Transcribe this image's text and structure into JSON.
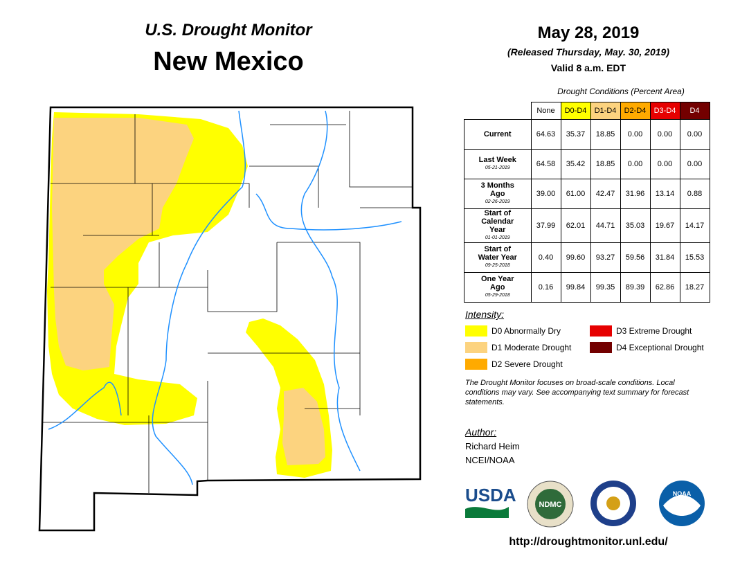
{
  "header": {
    "subtitle": "U.S. Drought Monitor",
    "title": "New Mexico",
    "date": "May 28, 2019",
    "released": "(Released Thursday, May. 30, 2019)",
    "valid": "Valid 8 a.m. EDT"
  },
  "table": {
    "caption": "Drought Conditions (Percent Area)",
    "columns": [
      {
        "label": "None",
        "color": "#ffffff"
      },
      {
        "label": "D0-D4",
        "color": "#ffff00"
      },
      {
        "label": "D1-D4",
        "color": "#fcd37f"
      },
      {
        "label": "D2-D4",
        "color": "#ffaa00"
      },
      {
        "label": "D3-D4",
        "color": "#e60000"
      },
      {
        "label": "D4",
        "color": "#730000"
      }
    ],
    "rows": [
      {
        "label": "Current",
        "values": [
          "64.63",
          "35.37",
          "18.85",
          "0.00",
          "0.00",
          "0.00"
        ]
      },
      {
        "label": "Last Week",
        "date": "05-21-2019",
        "values": [
          "64.58",
          "35.42",
          "18.85",
          "0.00",
          "0.00",
          "0.00"
        ]
      },
      {
        "label": "3 Months Ago",
        "date": "02-26-2019",
        "values": [
          "39.00",
          "61.00",
          "42.47",
          "31.96",
          "13.14",
          "0.88"
        ]
      },
      {
        "label": "Start of Calendar Year",
        "date": "01-01-2019",
        "values": [
          "37.99",
          "62.01",
          "44.71",
          "35.03",
          "19.67",
          "14.17"
        ]
      },
      {
        "label": "Start of Water Year",
        "date": "09-25-2018",
        "values": [
          "0.40",
          "99.60",
          "93.27",
          "59.56",
          "31.84",
          "15.53"
        ]
      },
      {
        "label": "One Year Ago",
        "date": "05-29-2018",
        "values": [
          "0.16",
          "99.84",
          "99.35",
          "89.39",
          "62.86",
          "18.27"
        ]
      }
    ]
  },
  "legend": {
    "title": "Intensity:",
    "items": [
      {
        "label": "D0 Abnormally Dry",
        "color": "#ffff00"
      },
      {
        "label": "D1 Moderate Drought",
        "color": "#fcd37f"
      },
      {
        "label": "D2 Severe Drought",
        "color": "#ffaa00"
      },
      {
        "label": "D3 Extreme Drought",
        "color": "#e60000"
      },
      {
        "label": "D4 Exceptional Drought",
        "color": "#730000"
      }
    ]
  },
  "note": "The Drought Monitor focuses on broad-scale conditions. Local conditions may vary. See accompanying text summary for forecast statements.",
  "author": {
    "heading": "Author:",
    "lines": [
      "Richard Heim",
      "NCEI/NOAA"
    ]
  },
  "logos": [
    "USDA",
    "NDMC",
    "NOAA"
  ],
  "url": "http://droughtmonitor.unl.edu/"
}
